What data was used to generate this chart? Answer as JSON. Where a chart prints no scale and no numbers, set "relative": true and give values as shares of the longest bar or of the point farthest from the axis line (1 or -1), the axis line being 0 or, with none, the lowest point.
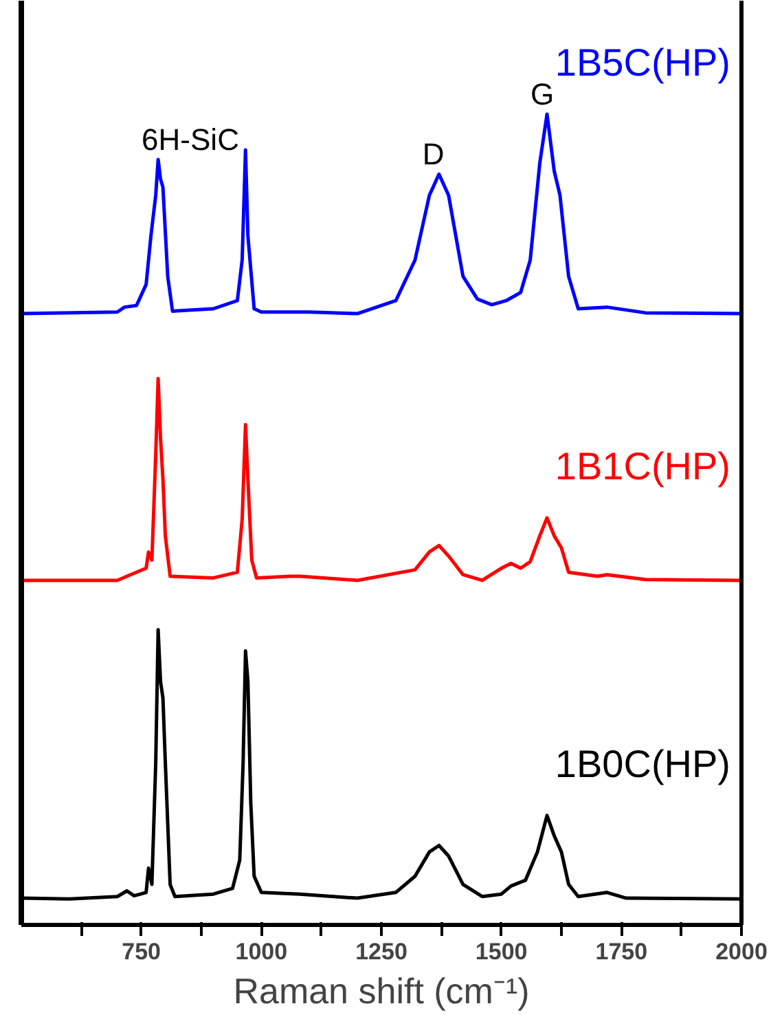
{
  "chart_data": {
    "type": "line",
    "relative": true,
    "xlabel": "Raman shift (cm⁻¹)",
    "xlim": [
      500,
      2000
    ],
    "xticks": [
      {
        "value": 625,
        "label": null
      },
      750,
      {
        "value": 875,
        "label": null
      },
      1000,
      {
        "value": 1125,
        "label": null
      },
      1250,
      {
        "value": 1375,
        "label": null
      },
      1500,
      {
        "value": 1625,
        "label": null
      },
      1750,
      {
        "value": 1875,
        "label": null
      },
      2000
    ],
    "legend": false,
    "grid": false,
    "series": [
      {
        "name": "1B5C(HP)",
        "color": "#0000ff",
        "x": [
          500,
          700,
          715,
          740,
          760,
          770,
          780,
          785,
          790,
          795,
          805,
          815,
          900,
          950,
          960,
          967,
          972,
          985,
          1000,
          1100,
          1200,
          1280,
          1320,
          1350,
          1370,
          1390,
          1420,
          1450,
          1480,
          1510,
          1540,
          1560,
          1580,
          1595,
          1610,
          1622,
          1640,
          1660,
          1720,
          1800,
          2000
        ],
        "values": [
          0.754,
          0.756,
          0.762,
          0.764,
          0.79,
          0.85,
          0.9,
          0.944,
          0.92,
          0.91,
          0.8,
          0.757,
          0.76,
          0.77,
          0.82,
          0.956,
          0.85,
          0.76,
          0.756,
          0.756,
          0.754,
          0.77,
          0.82,
          0.9,
          0.926,
          0.9,
          0.8,
          0.772,
          0.765,
          0.77,
          0.78,
          0.82,
          0.94,
          1.0,
          0.93,
          0.9,
          0.8,
          0.76,
          0.762,
          0.755,
          0.754
        ]
      },
      {
        "name": "1B1C(HP)",
        "color": "#ff0000",
        "x": [
          500,
          700,
          720,
          760,
          765,
          772,
          780,
          785,
          790,
          795,
          800,
          810,
          900,
          950,
          960,
          967,
          972,
          980,
          990,
          1060,
          1080,
          1200,
          1320,
          1350,
          1370,
          1390,
          1420,
          1460,
          1500,
          1520,
          1540,
          1560,
          1580,
          1595,
          1610,
          1625,
          1640,
          1700,
          1720,
          1800,
          2000
        ],
        "values": [
          0.425,
          0.425,
          0.43,
          0.44,
          0.46,
          0.45,
          0.58,
          0.674,
          0.6,
          0.55,
          0.48,
          0.43,
          0.428,
          0.435,
          0.5,
          0.617,
          0.55,
          0.45,
          0.428,
          0.43,
          0.43,
          0.425,
          0.438,
          0.46,
          0.468,
          0.455,
          0.432,
          0.425,
          0.44,
          0.446,
          0.44,
          0.448,
          0.48,
          0.502,
          0.48,
          0.465,
          0.435,
          0.43,
          0.432,
          0.426,
          0.425
        ]
      },
      {
        "name": "1B0C(HP)",
        "color": "#000000",
        "x": [
          500,
          600,
          700,
          720,
          735,
          760,
          765,
          772,
          780,
          785,
          790,
          795,
          800,
          810,
          820,
          900,
          940,
          955,
          962,
          967,
          972,
          978,
          985,
          1000,
          1080,
          1200,
          1280,
          1320,
          1350,
          1370,
          1390,
          1420,
          1460,
          1500,
          1520,
          1550,
          1575,
          1595,
          1610,
          1625,
          1640,
          1660,
          1720,
          1760,
          2000
        ],
        "values": [
          0.033,
          0.032,
          0.035,
          0.042,
          0.036,
          0.04,
          0.07,
          0.05,
          0.2,
          0.364,
          0.3,
          0.28,
          0.2,
          0.05,
          0.035,
          0.038,
          0.045,
          0.08,
          0.2,
          0.338,
          0.3,
          0.15,
          0.06,
          0.04,
          0.038,
          0.033,
          0.04,
          0.06,
          0.09,
          0.098,
          0.085,
          0.05,
          0.035,
          0.038,
          0.048,
          0.055,
          0.09,
          0.135,
          0.11,
          0.09,
          0.05,
          0.035,
          0.04,
          0.033,
          0.032
        ]
      }
    ],
    "annotations": [
      {
        "text": "6H-SiC",
        "x": 785,
        "y": 0.944
      },
      {
        "text": "D",
        "x": 1370,
        "y": 0.926
      },
      {
        "text": "G",
        "x": 1595,
        "y": 1.0
      }
    ]
  }
}
